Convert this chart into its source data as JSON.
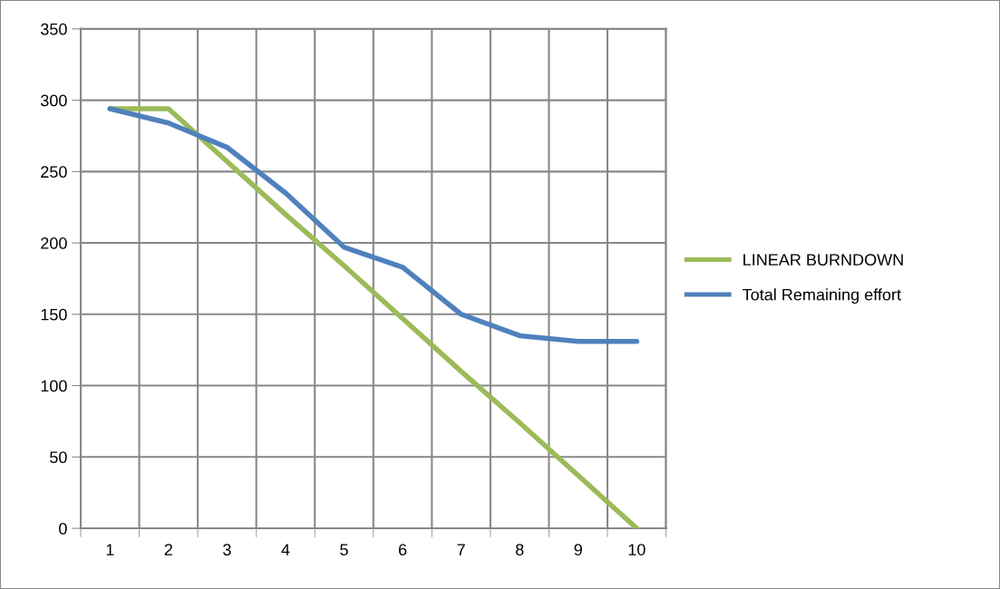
{
  "chart_data": {
    "type": "line",
    "categories": [
      "1",
      "2",
      "3",
      "4",
      "5",
      "6",
      "7",
      "8",
      "9",
      "10"
    ],
    "series": [
      {
        "name": "LINEAR BURNDOWN",
        "color": "#9bbb59",
        "values": [
          294,
          294,
          257,
          220,
          184,
          147,
          110,
          74,
          37,
          0
        ]
      },
      {
        "name": "Total Remaining effort",
        "color": "#4f81bd",
        "values": [
          294,
          284,
          267,
          235,
          197,
          183,
          150,
          135,
          131,
          131
        ]
      }
    ],
    "ylim": [
      0,
      350
    ],
    "yticks": [
      0,
      50,
      100,
      150,
      200,
      250,
      300,
      350
    ],
    "grid": true,
    "legend": "right",
    "marker": "none",
    "line_style": "solid"
  }
}
